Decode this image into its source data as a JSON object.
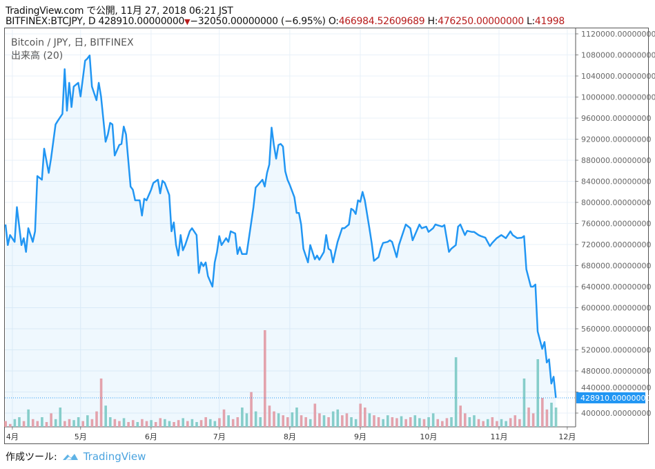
{
  "header": {
    "published": "TradingView.com で公開, 11月 27, 2018 06:21 JST",
    "symbol": "BITFINEX:BTCJPY, D",
    "last": "428910.00000000",
    "change": "−32050.00000000 (−6.95%)",
    "o_label": "O:",
    "o": "466984.52609689",
    "h_label": "H:",
    "h": "476250.00000000",
    "l_label": "L:",
    "l": "41998"
  },
  "legend": {
    "title": "Bitcoin / JPY, 日, BITFINEX",
    "volume": "出来高 (20)"
  },
  "footer": {
    "made_with": "作成ツール:",
    "brand": "TradingView"
  },
  "colors": {
    "line": "#2196f3",
    "up": "#8fd1c8",
    "down": "#f3a3a7",
    "grid": "#e8f0f8"
  },
  "chart_data": {
    "type": "line",
    "title": "Bitcoin / JPY, 日, BITFINEX",
    "x_unit": "days since 2018-03-29",
    "xticks": [
      {
        "day": 3,
        "label": "4月"
      },
      {
        "day": 33,
        "label": "5月"
      },
      {
        "day": 64,
        "label": "6月"
      },
      {
        "day": 94,
        "label": "7月"
      },
      {
        "day": 125,
        "label": "8月"
      },
      {
        "day": 156,
        "label": "9月"
      },
      {
        "day": 186,
        "label": "10月"
      },
      {
        "day": 217,
        "label": "11月"
      },
      {
        "day": 247,
        "label": "12月"
      }
    ],
    "ylim": [
      376000,
      1132000
    ],
    "yticks": [
      1120000,
      1080000,
      1040000,
      1000000,
      960000,
      920000,
      880000,
      840000,
      800000,
      760000,
      720000,
      680000,
      640000,
      600000,
      560000,
      520000,
      480000,
      440000,
      400000
    ],
    "ytick_suffix": ".00000000",
    "last_price_label": "428910.00000000",
    "last_price": 428910,
    "series": [
      {
        "name": "BTCJPY close (thousand JPY)",
        "points": [
          [
            0,
            758
          ],
          [
            1,
            719
          ],
          [
            2,
            738
          ],
          [
            4,
            725
          ],
          [
            5,
            791
          ],
          [
            7,
            719
          ],
          [
            8,
            732
          ],
          [
            9,
            706
          ],
          [
            10,
            751
          ],
          [
            12,
            725
          ],
          [
            13,
            745
          ],
          [
            14,
            850
          ],
          [
            16,
            843
          ],
          [
            17,
            902
          ],
          [
            19,
            856
          ],
          [
            20,
            883
          ],
          [
            22,
            948
          ],
          [
            23,
            955
          ],
          [
            25,
            968
          ],
          [
            26,
            1053
          ],
          [
            27,
            974
          ],
          [
            28,
            1027
          ],
          [
            29,
            981
          ],
          [
            30,
            1020
          ],
          [
            32,
            1027
          ],
          [
            33,
            1001
          ],
          [
            35,
            1069
          ],
          [
            36,
            1073
          ],
          [
            37,
            1079
          ],
          [
            38,
            1020
          ],
          [
            40,
            994
          ],
          [
            41,
            1027
          ],
          [
            42,
            1001
          ],
          [
            44,
            915
          ],
          [
            45,
            929
          ],
          [
            46,
            951
          ],
          [
            47,
            948
          ],
          [
            48,
            889
          ],
          [
            50,
            909
          ],
          [
            51,
            911
          ],
          [
            52,
            944
          ],
          [
            53,
            929
          ],
          [
            55,
            830
          ],
          [
            56,
            824
          ],
          [
            57,
            804
          ],
          [
            59,
            804
          ],
          [
            60,
            775
          ],
          [
            61,
            807
          ],
          [
            62,
            804
          ],
          [
            64,
            824
          ],
          [
            65,
            837
          ],
          [
            67,
            843
          ],
          [
            68,
            817
          ],
          [
            69,
            841
          ],
          [
            70,
            837
          ],
          [
            72,
            814
          ],
          [
            73,
            745
          ],
          [
            74,
            762
          ],
          [
            75,
            719
          ],
          [
            76,
            699
          ],
          [
            77,
            738
          ],
          [
            78,
            709
          ],
          [
            79,
            719
          ],
          [
            81,
            745
          ],
          [
            82,
            751
          ],
          [
            84,
            738
          ],
          [
            85,
            666
          ],
          [
            86,
            686
          ],
          [
            87,
            679
          ],
          [
            88,
            686
          ],
          [
            89,
            660
          ],
          [
            91,
            640
          ],
          [
            92,
            686
          ],
          [
            93,
            706
          ],
          [
            94,
            736
          ],
          [
            95,
            719
          ],
          [
            97,
            732
          ],
          [
            98,
            725
          ],
          [
            99,
            745
          ],
          [
            101,
            741
          ],
          [
            102,
            702
          ],
          [
            103,
            715
          ],
          [
            104,
            702
          ],
          [
            106,
            702
          ],
          [
            108,
            761
          ],
          [
            109,
            791
          ],
          [
            110,
            828
          ],
          [
            111,
            833
          ],
          [
            113,
            843
          ],
          [
            114,
            830
          ],
          [
            115,
            856
          ],
          [
            116,
            872
          ],
          [
            117,
            942
          ],
          [
            118,
            909
          ],
          [
            119,
            883
          ],
          [
            120,
            909
          ],
          [
            121,
            911
          ],
          [
            122,
            906
          ],
          [
            123,
            859
          ],
          [
            124,
            843
          ],
          [
            125,
            833
          ],
          [
            127,
            810
          ],
          [
            128,
            780
          ],
          [
            129,
            780
          ],
          [
            130,
            758
          ],
          [
            131,
            712
          ],
          [
            133,
            686
          ],
          [
            134,
            719
          ],
          [
            136,
            692
          ],
          [
            137,
            699
          ],
          [
            138,
            691
          ],
          [
            140,
            706
          ],
          [
            141,
            738
          ],
          [
            142,
            712
          ],
          [
            143,
            709
          ],
          [
            144,
            686
          ],
          [
            145,
            706
          ],
          [
            146,
            725
          ],
          [
            148,
            751
          ],
          [
            149,
            751
          ],
          [
            151,
            758
          ],
          [
            152,
            788
          ],
          [
            153,
            785
          ],
          [
            154,
            778
          ],
          [
            155,
            804
          ],
          [
            156,
            801
          ],
          [
            157,
            820
          ],
          [
            158,
            804
          ],
          [
            160,
            751
          ],
          [
            161,
            723
          ],
          [
            162,
            689
          ],
          [
            164,
            696
          ],
          [
            165,
            712
          ],
          [
            166,
            723
          ],
          [
            168,
            725
          ],
          [
            169,
            728
          ],
          [
            170,
            725
          ],
          [
            172,
            696
          ],
          [
            173,
            719
          ],
          [
            174,
            732
          ],
          [
            176,
            758
          ],
          [
            178,
            751
          ],
          [
            179,
            728
          ],
          [
            180,
            738
          ],
          [
            182,
            758
          ],
          [
            183,
            751
          ],
          [
            185,
            754
          ],
          [
            186,
            744
          ],
          [
            188,
            751
          ],
          [
            189,
            758
          ],
          [
            192,
            754
          ],
          [
            193,
            757
          ],
          [
            195,
            706
          ],
          [
            196,
            712
          ],
          [
            198,
            719
          ],
          [
            199,
            754
          ],
          [
            200,
            758
          ],
          [
            202,
            738
          ],
          [
            203,
            746
          ],
          [
            205,
            744
          ],
          [
            206,
            744
          ],
          [
            208,
            738
          ],
          [
            209,
            736
          ],
          [
            211,
            733
          ],
          [
            213,
            717
          ],
          [
            214,
            723
          ],
          [
            216,
            732
          ],
          [
            218,
            738
          ],
          [
            220,
            732
          ],
          [
            222,
            745
          ],
          [
            223,
            738
          ],
          [
            225,
            732
          ],
          [
            227,
            733
          ],
          [
            228,
            736
          ],
          [
            229,
            673
          ],
          [
            231,
            640
          ],
          [
            232,
            640
          ],
          [
            233,
            644
          ],
          [
            234,
            555
          ],
          [
            236,
            522
          ],
          [
            237,
            535
          ],
          [
            238,
            496
          ],
          [
            239,
            502
          ],
          [
            240,
            456
          ],
          [
            241,
            469
          ],
          [
            242,
            429
          ]
        ]
      }
    ],
    "volume": {
      "name": "出来高 (20)",
      "step_days": 2,
      "values": [
        6,
        3,
        8,
        10,
        6,
        18,
        8,
        6,
        10,
        5,
        14,
        8,
        20,
        6,
        8,
        7,
        10,
        6,
        12,
        8,
        16,
        50,
        22,
        10,
        8,
        6,
        9,
        5,
        7,
        5,
        8,
        6,
        7,
        5,
        9,
        8,
        6,
        5,
        7,
        9,
        6,
        8,
        5,
        7,
        10,
        8,
        6,
        9,
        18,
        12,
        8,
        10,
        20,
        14,
        36,
        16,
        10,
        100,
        22,
        16,
        14,
        12,
        10,
        15,
        20,
        12,
        10,
        8,
        24,
        14,
        12,
        10,
        16,
        18,
        12,
        14,
        10,
        8,
        24,
        20,
        14,
        12,
        10,
        8,
        12,
        10,
        9,
        11,
        8,
        10,
        12,
        9,
        8,
        10,
        14,
        8,
        6,
        9,
        10,
        72,
        22,
        14,
        10,
        12,
        8,
        6,
        8,
        10,
        6,
        8,
        6,
        9,
        12,
        8,
        50,
        20,
        14,
        70,
        30,
        18,
        25,
        20
      ],
      "direction": "dduududdudduudduududdduuddudduddudduudduduudduuddudduuduudddudduuddudduduudduuddudduuddudduuduuddduudduuddudduuddduddudd"
    }
  }
}
